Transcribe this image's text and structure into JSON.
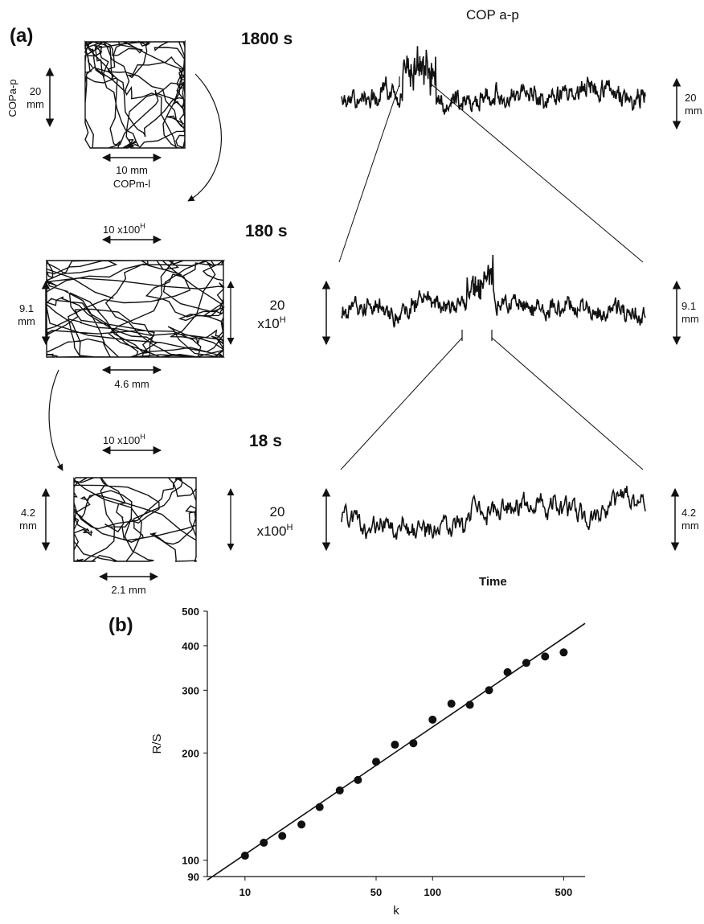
{
  "panel_a": {
    "label": "(a)",
    "title": "COP a-p",
    "time_label": "Time",
    "rows": [
      {
        "duration": "1800 s",
        "stabilogram": {
          "vertical_value": "20",
          "vertical_unit": "mm",
          "vertical_axis_name": "COPa-p",
          "horizontal_label": "10 mm",
          "horizontal_axis_name": "COPm-l"
        },
        "trace_scale": {
          "value": "20",
          "unit": "mm"
        }
      },
      {
        "duration": "180 s",
        "stabilogram": {
          "top_label": "10 x100",
          "top_label_sup": "H",
          "vertical_value": "9.1",
          "vertical_unit": "mm",
          "horizontal_label": "4.6 mm"
        },
        "middle_scale": {
          "value": "20",
          "unit": "x10",
          "sup": "H"
        },
        "trace_scale": {
          "value": "9.1",
          "unit": "mm"
        }
      },
      {
        "duration": "18 s",
        "stabilogram": {
          "top_label": "10 x100",
          "top_label_sup": "H",
          "vertical_value": "4.2",
          "vertical_unit": "mm",
          "horizontal_label": "2.1 mm"
        },
        "middle_scale": {
          "value": "20",
          "unit": "x100",
          "sup": "H"
        },
        "trace_scale": {
          "value": "4.2",
          "unit": "mm"
        }
      }
    ]
  },
  "panel_b": {
    "label": "(b)"
  },
  "chart_data": {
    "type": "scatter",
    "xlabel": "k",
    "ylabel": "R/S",
    "x_scale": "log",
    "y_scale": "log",
    "xlim": [
      6.3,
      650
    ],
    "ylim": [
      90,
      500
    ],
    "x_ticks": [
      10,
      50,
      100,
      500
    ],
    "y_ticks": [
      90,
      100,
      200,
      300,
      400,
      500
    ],
    "points": [
      {
        "k": 10,
        "rs": 103
      },
      {
        "k": 12.6,
        "rs": 112
      },
      {
        "k": 15.8,
        "rs": 117
      },
      {
        "k": 20,
        "rs": 126
      },
      {
        "k": 25,
        "rs": 141
      },
      {
        "k": 32,
        "rs": 157
      },
      {
        "k": 40,
        "rs": 168
      },
      {
        "k": 50,
        "rs": 189
      },
      {
        "k": 63,
        "rs": 211
      },
      {
        "k": 79,
        "rs": 213
      },
      {
        "k": 100,
        "rs": 248
      },
      {
        "k": 126,
        "rs": 275
      },
      {
        "k": 158,
        "rs": 273
      },
      {
        "k": 200,
        "rs": 300
      },
      {
        "k": 251,
        "rs": 337
      },
      {
        "k": 316,
        "rs": 358
      },
      {
        "k": 398,
        "rs": 373
      },
      {
        "k": 500,
        "rs": 383
      }
    ],
    "fit_line": {
      "k": [
        6.3,
        650
      ],
      "rs": [
        88,
        462
      ]
    },
    "grid": false,
    "legend": "none"
  }
}
